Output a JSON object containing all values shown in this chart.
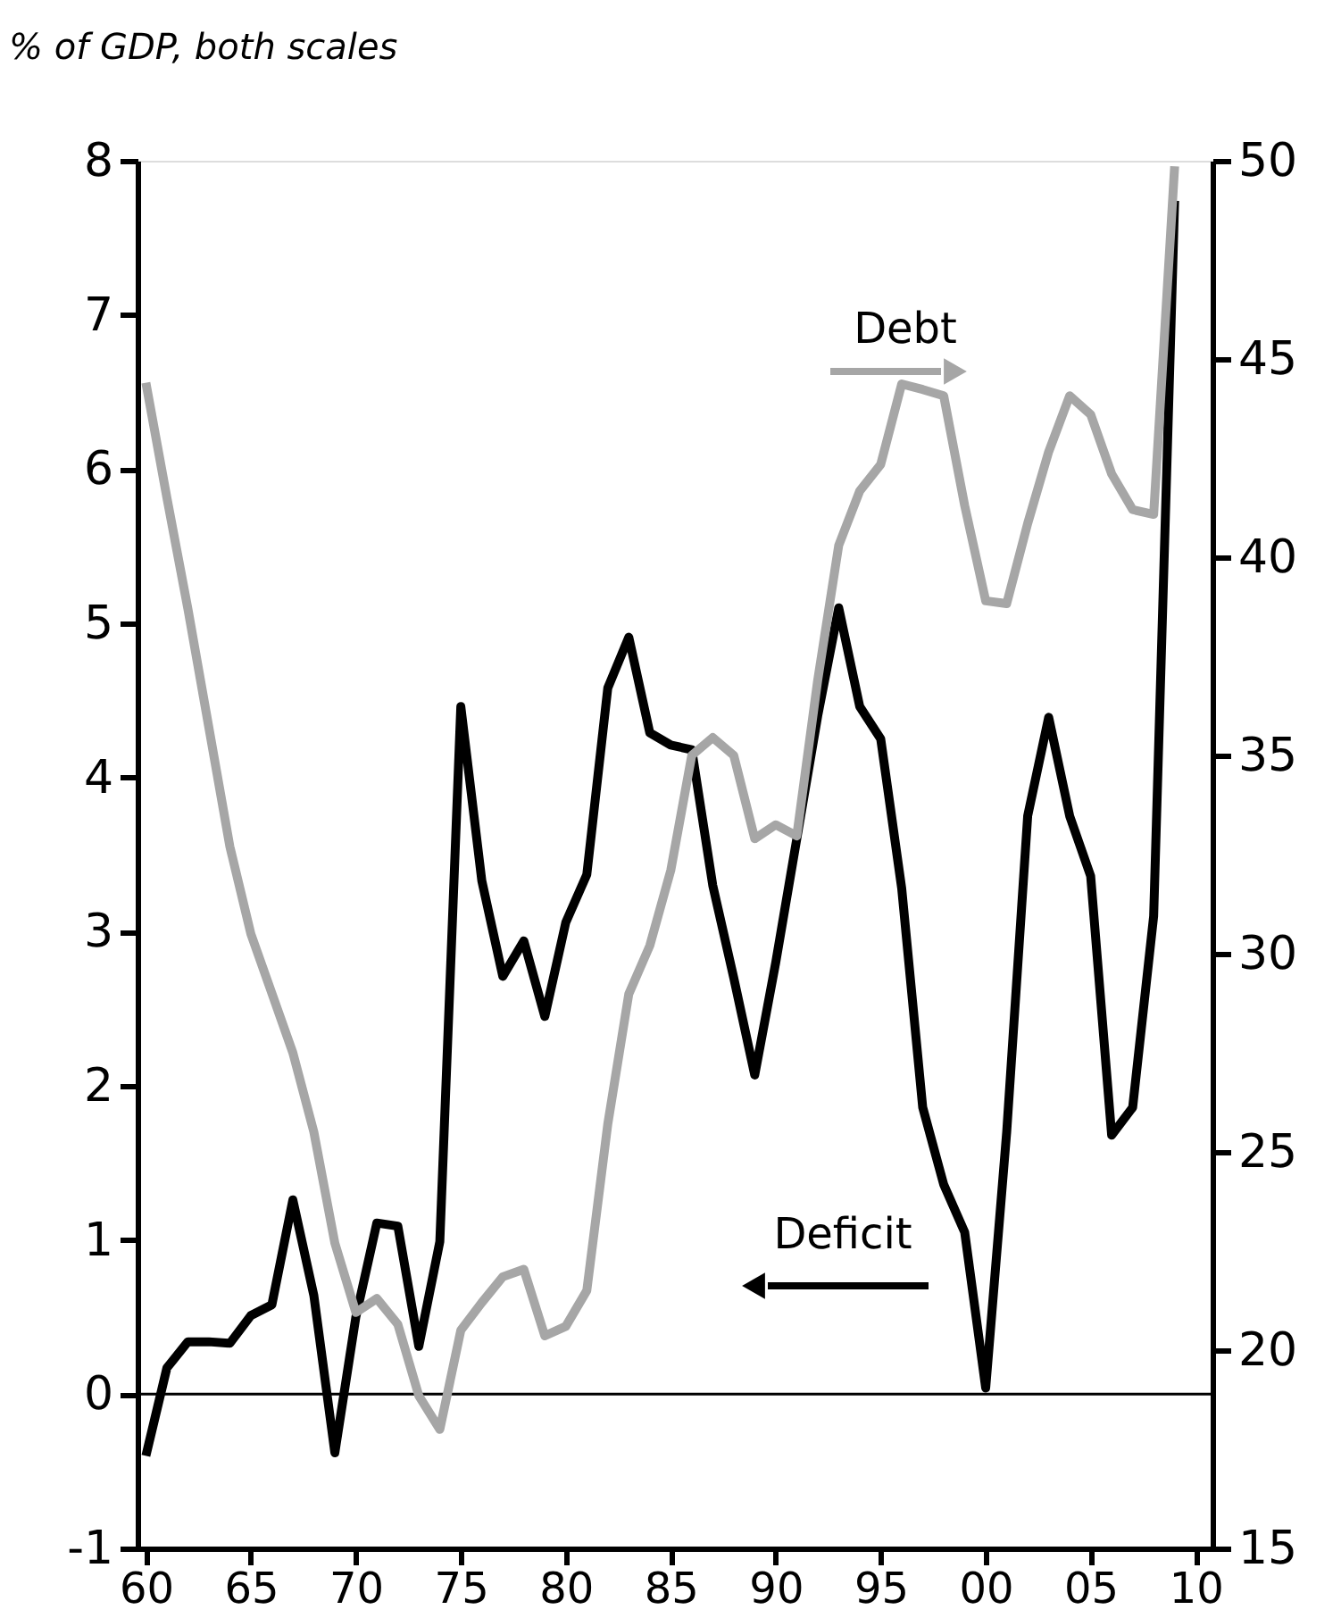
{
  "chart_data": {
    "type": "line",
    "ylabel": "% of GDP, both scales",
    "x": [
      1960,
      1961,
      1962,
      1963,
      1964,
      1965,
      1966,
      1967,
      1968,
      1969,
      1970,
      1971,
      1972,
      1973,
      1974,
      1975,
      1976,
      1977,
      1978,
      1979,
      1980,
      1981,
      1982,
      1983,
      1984,
      1985,
      1986,
      1987,
      1988,
      1989,
      1990,
      1991,
      1992,
      1993,
      1994,
      1995,
      1996,
      1997,
      1998,
      1999,
      2000,
      2001,
      2002,
      2003,
      2004,
      2005,
      2006,
      2007,
      2008,
      2009
    ],
    "series": [
      {
        "name": "Deficit",
        "color": "#000000",
        "axis": "y",
        "values": [
          -0.4,
          0.17,
          0.34,
          0.34,
          0.33,
          0.51,
          0.58,
          1.26,
          0.64,
          -0.38,
          0.5,
          1.11,
          1.09,
          0.31,
          0.99,
          4.46,
          3.33,
          2.71,
          2.94,
          2.45,
          3.06,
          3.37,
          4.58,
          4.91,
          4.29,
          4.21,
          4.18,
          3.3,
          2.7,
          2.07,
          2.8,
          3.6,
          4.4,
          5.1,
          4.46,
          4.25,
          3.28,
          1.86,
          1.36,
          1.05,
          0.04,
          1.7,
          3.75,
          4.39,
          3.75,
          3.36,
          1.68,
          1.86,
          3.1,
          7.74
        ]
      },
      {
        "name": "Debt",
        "color": "#a6a6a6",
        "axis": "y2",
        "values": [
          44.4,
          41.5,
          38.7,
          35.7,
          32.7,
          30.5,
          29.0,
          27.5,
          25.5,
          22.7,
          20.95,
          21.3,
          20.65,
          18.85,
          18.0,
          20.5,
          21.2,
          21.85,
          22.04,
          20.36,
          20.6,
          21.5,
          25.7,
          28.98,
          30.2,
          32.1,
          35.0,
          35.45,
          35.0,
          32.9,
          33.25,
          32.97,
          36.9,
          40.3,
          41.67,
          42.34,
          44.37,
          44.23,
          44.07,
          41.3,
          38.9,
          38.83,
          40.85,
          42.66,
          44.07,
          43.6,
          42.1,
          41.2,
          41.08,
          49.86
        ]
      }
    ],
    "xlim": [
      1959.6,
      2010.8
    ],
    "xticks": [
      {
        "value": 1960,
        "label": "60"
      },
      {
        "value": 1965,
        "label": "65"
      },
      {
        "value": 1970,
        "label": "70"
      },
      {
        "value": 1975,
        "label": "75"
      },
      {
        "value": 1980,
        "label": "80"
      },
      {
        "value": 1985,
        "label": "85"
      },
      {
        "value": 1990,
        "label": "90"
      },
      {
        "value": 1995,
        "label": "95"
      },
      {
        "value": 2000,
        "label": "00"
      },
      {
        "value": 2005,
        "label": "05"
      },
      {
        "value": 2010,
        "label": "10"
      }
    ],
    "ylim": [
      -1,
      8
    ],
    "yticks": [
      -1,
      0,
      1,
      2,
      3,
      4,
      5,
      6,
      7,
      8
    ],
    "y2lim": [
      15,
      50
    ],
    "y2ticks": [
      15,
      20,
      25,
      30,
      35,
      40,
      45,
      50
    ],
    "ref_lines": [
      {
        "axis": "y",
        "value": 0,
        "color": "#000000"
      }
    ]
  }
}
